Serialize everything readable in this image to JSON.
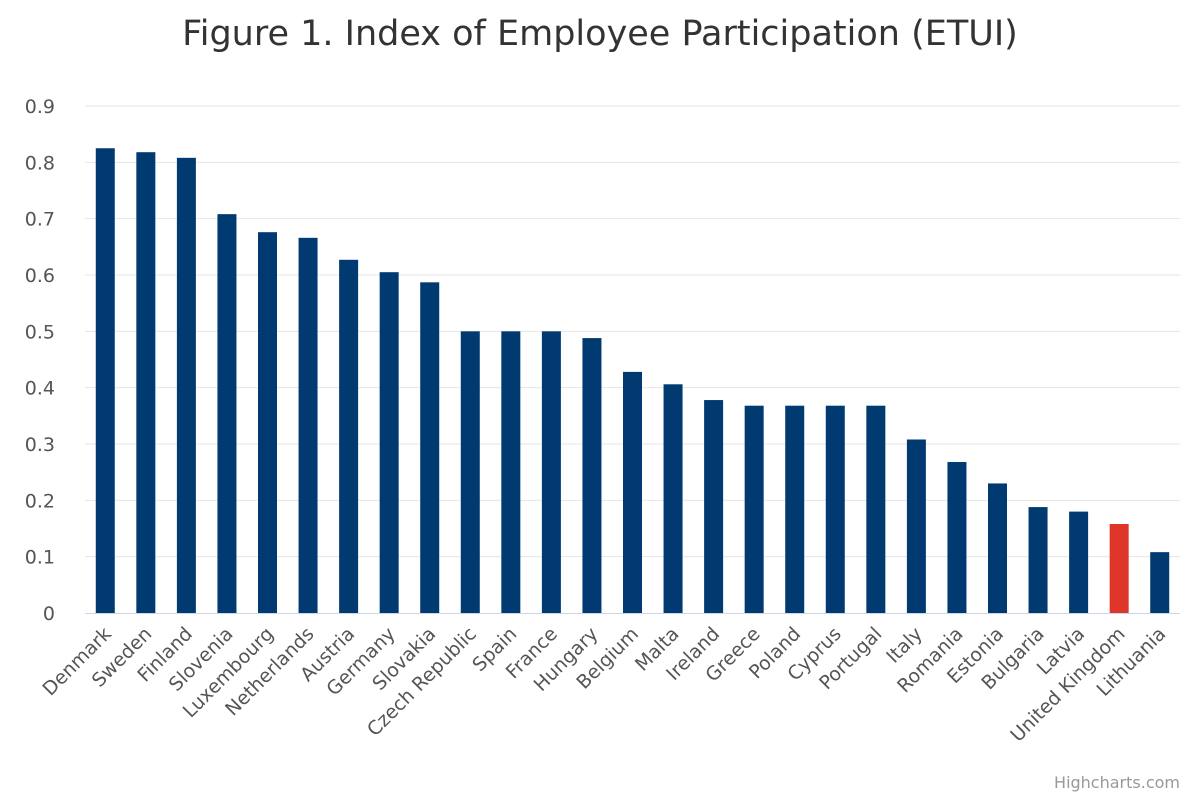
{
  "chart_data": {
    "type": "bar",
    "title": "Figure 1. Index of Employee Participation (ETUI)",
    "xlabel": "",
    "ylabel": "",
    "ylim": [
      0,
      0.9
    ],
    "yticks": [
      "0",
      "0.1",
      "0.2",
      "0.3",
      "0.4",
      "0.5",
      "0.6",
      "0.7",
      "0.8",
      "0.9"
    ],
    "grid": true,
    "legend": "none",
    "categories": [
      "Denmark",
      "Sweden",
      "Finland",
      "Slovenia",
      "Luxembourg",
      "Netherlands",
      "Austria",
      "Germany",
      "Slovakia",
      "Czech Republic",
      "Spain",
      "France",
      "Hungary",
      "Belgium",
      "Malta",
      "Ireland",
      "Greece",
      "Poland",
      "Cyprus",
      "Portugal",
      "Italy",
      "Romania",
      "Estonia",
      "Bulgaria",
      "Latvia",
      "United Kingdom",
      "Lithuania"
    ],
    "values": [
      0.825,
      0.818,
      0.808,
      0.708,
      0.676,
      0.666,
      0.627,
      0.605,
      0.587,
      0.5,
      0.5,
      0.5,
      0.488,
      0.428,
      0.406,
      0.378,
      0.368,
      0.368,
      0.368,
      0.368,
      0.308,
      0.268,
      0.23,
      0.188,
      0.18,
      0.158,
      0.108
    ],
    "bar_color": "#003A70",
    "highlight_color": "#E0362A",
    "highlight_category": "United Kingdom"
  },
  "credits": "Highcharts.com"
}
